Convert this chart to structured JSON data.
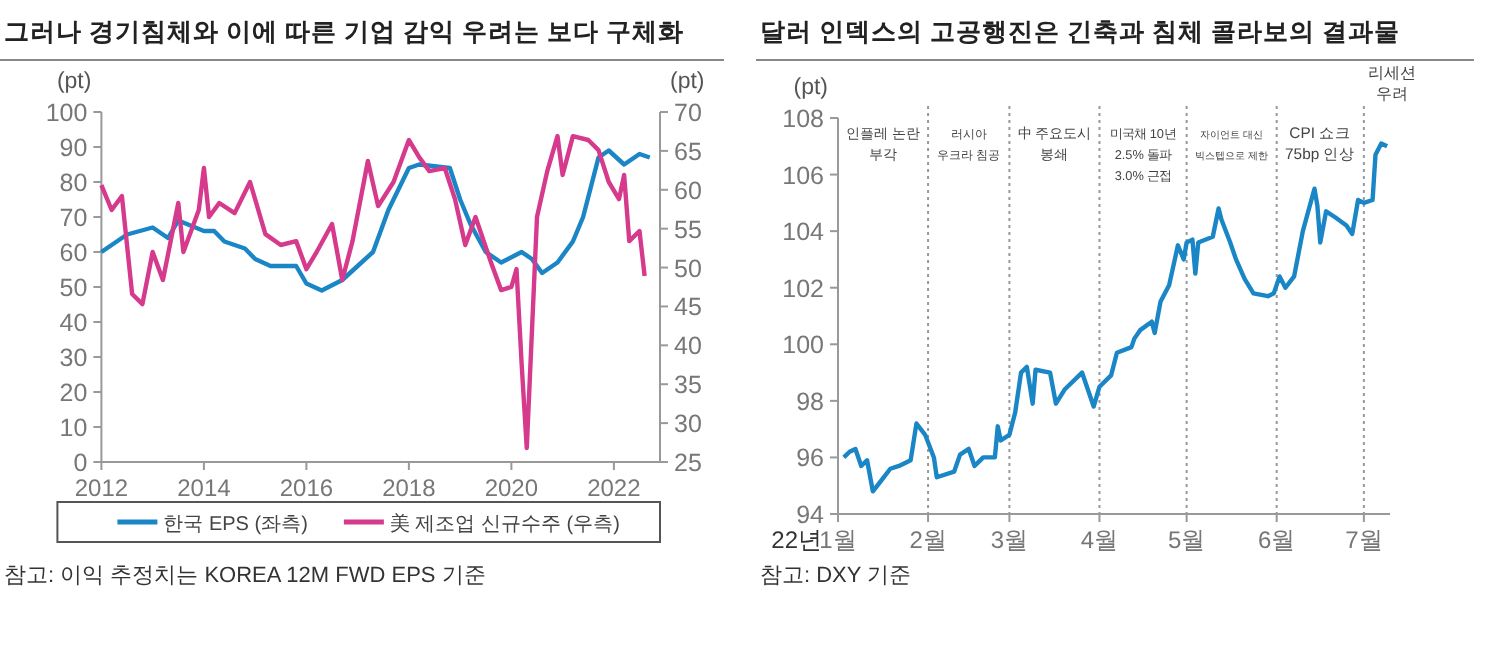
{
  "chart_data": [
    {
      "type": "line",
      "title": "그러나 경기침체와 이에 따른 기업 감익 우려는 보다 구체화",
      "ylabel": "(pt)",
      "y2label": "(pt)",
      "xlim": [
        2012,
        2022.9
      ],
      "xticks": [
        2012,
        2014,
        2016,
        2018,
        2020,
        2022
      ],
      "ylim": [
        0,
        100
      ],
      "yticks": [
        0,
        10,
        20,
        30,
        40,
        50,
        60,
        70,
        80,
        90,
        100
      ],
      "y2lim": [
        25,
        70
      ],
      "y2ticks": [
        25,
        30,
        35,
        40,
        45,
        50,
        55,
        60,
        65,
        70
      ],
      "legend": "bottom",
      "grid": false,
      "series": [
        {
          "name": "한국 EPS (좌측)",
          "color": "#1a86c6",
          "x": [
            2012,
            2012.5,
            2013,
            2013.3,
            2013.5,
            2014,
            2014.2,
            2014.4,
            2014.8,
            2015,
            2015.3,
            2015.8,
            2016,
            2016.3,
            2016.7,
            2017,
            2017.3,
            2017.6,
            2018,
            2018.2,
            2018.8,
            2019,
            2019.2,
            2019.5,
            2019.8,
            2020.2,
            2020.4,
            2020.6,
            2020.9,
            2021.2,
            2021.4,
            2021.7,
            2021.9,
            2022.2,
            2022.5,
            2022.7
          ],
          "values": [
            60,
            65,
            67,
            64,
            69,
            66,
            66,
            63,
            61,
            58,
            56,
            56,
            51,
            49,
            52,
            56,
            60,
            72,
            84,
            85,
            84,
            75,
            68,
            60,
            57,
            60,
            58,
            54,
            57,
            63,
            70,
            87,
            89,
            85,
            88,
            87
          ]
        },
        {
          "name": "美 제조업 신규수주 (우측)",
          "color": "#d63a8c",
          "axis": "y2",
          "x": [
            2012,
            2012.2,
            2012.4,
            2012.6,
            2012.8,
            2013,
            2013.2,
            2013.5,
            2013.6,
            2013.9,
            2014,
            2014.1,
            2014.3,
            2014.6,
            2014.9,
            2015.2,
            2015.5,
            2015.8,
            2016,
            2016.2,
            2016.5,
            2016.7,
            2016.9,
            2017.2,
            2017.4,
            2017.7,
            2018,
            2018.2,
            2018.4,
            2018.7,
            2018.9,
            2019.1,
            2019.3,
            2019.6,
            2019.8,
            2020,
            2020.1,
            2020.2,
            2020.3,
            2020.5,
            2020.7,
            2020.9,
            2021,
            2021.2,
            2021.5,
            2021.7,
            2021.9,
            2022.1,
            2022.2,
            2022.3,
            2022.5,
            2022.6
          ],
          "values": [
            60.6,
            57.4,
            59.2,
            46.6,
            45.3,
            52,
            48.4,
            58.3,
            52,
            57.4,
            62.8,
            56.5,
            58.3,
            57,
            61,
            54.3,
            52.9,
            53.4,
            49.8,
            52,
            55.6,
            48.4,
            53.4,
            63.7,
            57.9,
            61,
            66.4,
            64.2,
            62.4,
            62.8,
            58.8,
            52.9,
            56.5,
            50.7,
            47.1,
            47.5,
            49.8,
            37.6,
            26.8,
            56.5,
            62.4,
            66.9,
            61.9,
            66.9,
            66.4,
            65.1,
            61,
            58.8,
            61.9,
            53.4,
            54.7,
            48.9
          ]
        }
      ],
      "annotations": [
        "참고: 이익 추정치는 KOREA 12M FWD EPS 기준"
      ]
    },
    {
      "type": "line",
      "title": "달러 인덱스의 고공행진은 긴축과 침체 콜라보의 결과물",
      "ylabel": "(pt)",
      "xlabel": "22년",
      "xlim": [
        "2022-01-01",
        "2022-07-10"
      ],
      "xticks": [
        {
          "value": "2022-01-01",
          "label": "1월"
        },
        {
          "value": "2022-02-01",
          "label": "2월"
        },
        {
          "value": "2022-03-01",
          "label": "3월"
        },
        {
          "value": "2022-04-01",
          "label": "4월"
        },
        {
          "value": "2022-05-01",
          "label": "5월"
        },
        {
          "value": "2022-06-01",
          "label": "6월"
        },
        {
          "value": "2022-07-01",
          "label": "7월"
        }
      ],
      "ylim": [
        94,
        108
      ],
      "yticks": [
        94,
        96,
        98,
        100,
        102,
        104,
        106,
        108
      ],
      "grid": false,
      "x": [
        "2022-01-03",
        "2022-01-05",
        "2022-01-07",
        "2022-01-09",
        "2022-01-11",
        "2022-01-13",
        "2022-01-16",
        "2022-01-19",
        "2022-01-22",
        "2022-01-26",
        "2022-01-28",
        "2022-01-31",
        "2022-02-03",
        "2022-02-04",
        "2022-02-10",
        "2022-02-12",
        "2022-02-15",
        "2022-02-17",
        "2022-02-20",
        "2022-02-24",
        "2022-02-25",
        "2022-02-26",
        "2022-03-01",
        "2022-03-03",
        "2022-03-05",
        "2022-03-07",
        "2022-03-09",
        "2022-03-10",
        "2022-03-15",
        "2022-03-17",
        "2022-03-20",
        "2022-03-26",
        "2022-03-30",
        "2022-04-01",
        "2022-04-05",
        "2022-04-07",
        "2022-04-12",
        "2022-04-13",
        "2022-04-15",
        "2022-04-19",
        "2022-04-20",
        "2022-04-22",
        "2022-04-25",
        "2022-04-28",
        "2022-04-30",
        "2022-05-01",
        "2022-05-03",
        "2022-05-04",
        "2022-05-05",
        "2022-05-10",
        "2022-05-12",
        "2022-05-13",
        "2022-05-16",
        "2022-05-18",
        "2022-05-21",
        "2022-05-24",
        "2022-05-29",
        "2022-05-31",
        "2022-06-02",
        "2022-06-04",
        "2022-06-07",
        "2022-06-10",
        "2022-06-14",
        "2022-06-15",
        "2022-06-16",
        "2022-06-18",
        "2022-06-21",
        "2022-06-25",
        "2022-06-27",
        "2022-06-29",
        "2022-07-01",
        "2022-07-04",
        "2022-07-05",
        "2022-07-07",
        "2022-07-09"
      ],
      "series": [
        {
          "color": "#1a86c6",
          "values": [
            96.0,
            96.2,
            96.3,
            95.7,
            95.9,
            94.8,
            95.2,
            95.6,
            95.7,
            95.9,
            97.2,
            96.8,
            96.0,
            95.3,
            95.5,
            96.1,
            96.3,
            95.7,
            96.0,
            96.0,
            97.1,
            96.6,
            96.8,
            97.6,
            99.0,
            99.2,
            97.9,
            99.1,
            99.0,
            97.9,
            98.4,
            99.0,
            97.8,
            98.5,
            98.9,
            99.7,
            99.9,
            100.2,
            100.5,
            100.8,
            100.4,
            101.5,
            102.1,
            103.5,
            103.0,
            103.6,
            103.7,
            102.5,
            103.6,
            103.8,
            104.8,
            104.4,
            103.6,
            103.0,
            102.3,
            101.8,
            101.7,
            101.8,
            102.4,
            102.0,
            102.4,
            104.0,
            105.5,
            104.9,
            103.6,
            104.7,
            104.5,
            104.2,
            103.9,
            105.1,
            105.0,
            105.1,
            106.7,
            107.1,
            107.0
          ]
        }
      ],
      "ref_lines": [
        {
          "axis": "x",
          "value": "2022-02-01",
          "color": "#999999",
          "line_style": "dotted"
        },
        {
          "axis": "x",
          "value": "2022-03-01",
          "color": "#999999",
          "line_style": "dotted"
        },
        {
          "axis": "x",
          "value": "2022-04-01",
          "color": "#999999",
          "line_style": "dotted"
        },
        {
          "axis": "x",
          "value": "2022-05-01",
          "color": "#999999",
          "line_style": "dotted"
        },
        {
          "axis": "x",
          "value": "2022-06-01",
          "color": "#999999",
          "line_style": "dotted"
        },
        {
          "axis": "x",
          "value": "2022-07-01",
          "color": "#999999",
          "line_style": "dotted"
        }
      ],
      "annotations": [
        "인플레 논란\n부각",
        "러시아\n우크라 침공",
        "中 주요도시\n봉쇄",
        "미국채 10년\n2.5% 돌파\n3.0% 근접",
        "자이언트 대신\n빅스텝으로 제한",
        "CPI 쇼크\n75bp 인상",
        "리세션\n우려",
        "참고: DXY 기준"
      ]
    }
  ]
}
